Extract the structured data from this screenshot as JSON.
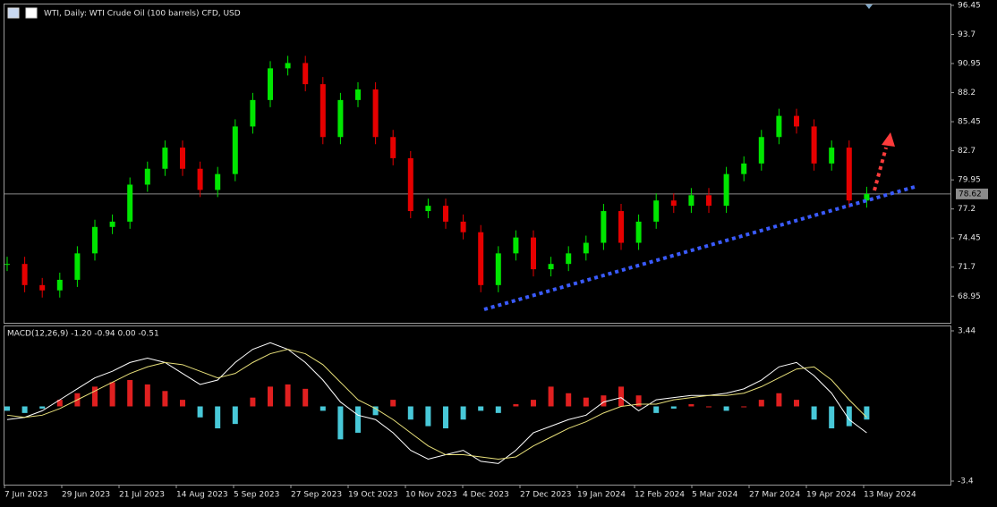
{
  "header": {
    "title": "WTI, Daily:  WTI Crude Oil (100 barrels) CFD, USD"
  },
  "chart_data": {
    "type": "candlestick",
    "close": [
      72,
      70,
      69.5,
      70.5,
      73,
      75.5,
      76,
      79.5,
      81,
      83,
      81,
      79,
      80.5,
      85,
      87.5,
      90.5,
      91,
      89,
      84,
      87.5,
      88.5,
      84,
      82,
      77,
      77.5,
      76,
      75,
      70,
      73,
      74.5,
      71.5,
      72,
      73,
      74,
      77,
      74,
      76,
      78,
      77.5,
      78.5,
      77.5,
      80.5,
      81.5,
      84,
      86,
      85,
      81.5,
      83,
      78,
      78.62
    ],
    "ylim": [
      66.35,
      96.62
    ],
    "yticks": [
      96.45,
      93.7,
      90.95,
      88.2,
      85.45,
      82.7,
      79.95,
      77.2,
      74.45,
      71.7,
      68.95
    ],
    "current_price": 78.62,
    "categories": [
      "7 Jun 2023",
      "29 Jun 2023",
      "21 Jul 2023",
      "14 Aug 2023",
      "5 Sep 2023",
      "27 Sep 2023",
      "19 Oct 2023",
      "10 Nov 2023",
      "4 Dec 2023",
      "27 Dec 2023",
      "19 Jan 2024",
      "12 Feb 2024",
      "5 Mar 2024",
      "27 Mar 2024",
      "19 Apr 2024",
      "13 May 2024"
    ],
    "colors": {
      "up": "#00e600",
      "down": "#e60000",
      "trend": "#3a5bff",
      "arrow": "#ff3b3b"
    }
  },
  "macd": {
    "label": "MACD(12,26,9) -1.20 -0.94 0.00 -0.51",
    "ylim": [
      -3.4,
      3.44
    ],
    "yticks": [
      3.44,
      -3.4
    ],
    "histogram": [
      -0.2,
      -0.3,
      -0.1,
      0.3,
      0.6,
      0.9,
      1.1,
      1.2,
      1.0,
      0.7,
      0.3,
      -0.5,
      -1.0,
      -0.8,
      0.4,
      0.9,
      1.0,
      0.8,
      -0.2,
      -1.5,
      -1.2,
      -0.4,
      0.3,
      -0.6,
      -0.9,
      -1.0,
      -0.6,
      -0.2,
      -0.3,
      0.1,
      0.3,
      0.9,
      0.6,
      0.4,
      0.5,
      0.9,
      0.5,
      -0.3,
      -0.1,
      0.1,
      0.0,
      -0.2,
      0.0,
      0.3,
      0.6,
      0.3,
      -0.6,
      -1.0,
      -0.9,
      -0.6
    ],
    "main": [
      -0.6,
      -0.5,
      -0.2,
      0.3,
      0.8,
      1.3,
      1.6,
      2.0,
      2.2,
      2.0,
      1.5,
      1.0,
      1.2,
      2.0,
      2.6,
      2.9,
      2.6,
      2.0,
      1.2,
      0.2,
      -0.4,
      -0.6,
      -1.2,
      -2.0,
      -2.4,
      -2.2,
      -2.0,
      -2.5,
      -2.6,
      -2.0,
      -1.2,
      -0.9,
      -0.6,
      -0.4,
      0.2,
      0.4,
      -0.2,
      0.3,
      0.4,
      0.5,
      0.5,
      0.6,
      0.8,
      1.2,
      1.8,
      2.0,
      1.4,
      0.6,
      -0.6,
      -1.2
    ],
    "signal": [
      -0.4,
      -0.5,
      -0.4,
      -0.1,
      0.3,
      0.7,
      1.1,
      1.5,
      1.8,
      2.0,
      1.9,
      1.6,
      1.3,
      1.5,
      2.0,
      2.4,
      2.6,
      2.4,
      1.9,
      1.1,
      0.3,
      -0.1,
      -0.6,
      -1.2,
      -1.8,
      -2.2,
      -2.2,
      -2.3,
      -2.4,
      -2.3,
      -1.8,
      -1.4,
      -1.0,
      -0.7,
      -0.3,
      0.0,
      0.1,
      0.1,
      0.3,
      0.4,
      0.5,
      0.5,
      0.6,
      0.9,
      1.3,
      1.7,
      1.8,
      1.2,
      0.3,
      -0.5
    ],
    "colors": {
      "pos": "#e02020",
      "neg": "#48c8d8",
      "main": "#ffffff",
      "signal": "#e8e07a"
    }
  }
}
